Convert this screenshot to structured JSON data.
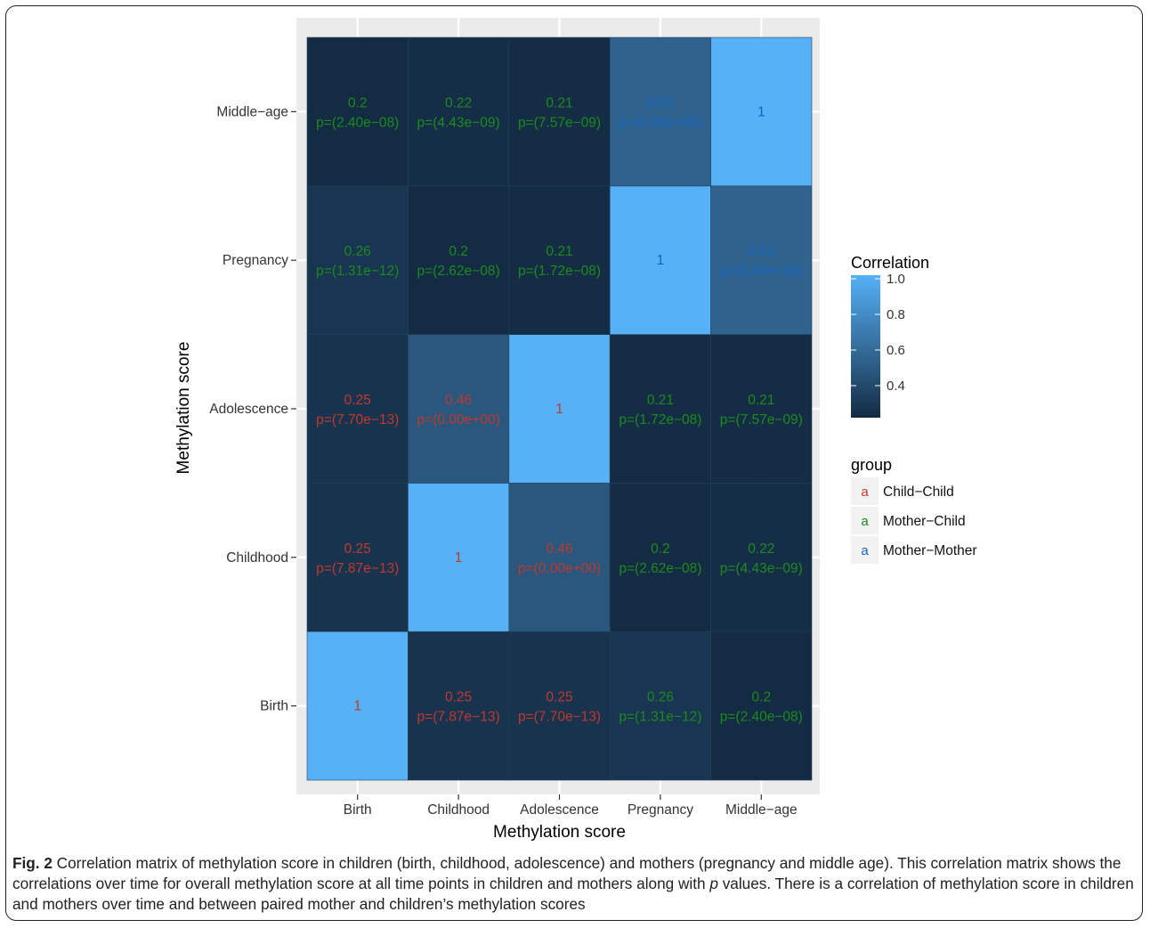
{
  "chart_data": {
    "type": "heatmap",
    "x_categories": [
      "Birth",
      "Childhood",
      "Adolescence",
      "Pregnancy",
      "Middle−age"
    ],
    "y_categories": [
      "Birth",
      "Childhood",
      "Adolescence",
      "Pregnancy",
      "Middle−age"
    ],
    "xlabel": "Methylation score",
    "ylabel": "Methylation score",
    "cells": [
      {
        "x": "Birth",
        "y": "Birth",
        "value": 1,
        "label": "1",
        "p": "",
        "group": "Child−Child"
      },
      {
        "x": "Birth",
        "y": "Childhood",
        "value": 0.25,
        "label": "0.25",
        "p": "p=(7.87e−13)",
        "group": "Child−Child"
      },
      {
        "x": "Birth",
        "y": "Adolescence",
        "value": 0.25,
        "label": "0.25",
        "p": "p=(7.70e−13)",
        "group": "Child−Child"
      },
      {
        "x": "Birth",
        "y": "Pregnancy",
        "value": 0.26,
        "label": "0.26",
        "p": "p=(1.31e−12)",
        "group": "Mother−Child"
      },
      {
        "x": "Birth",
        "y": "Middle−age",
        "value": 0.2,
        "label": "0.2",
        "p": "p=(2.40e−08)",
        "group": "Mother−Child"
      },
      {
        "x": "Childhood",
        "y": "Birth",
        "value": 0.25,
        "label": "0.25",
        "p": "p=(7.87e−13)",
        "group": "Child−Child"
      },
      {
        "x": "Childhood",
        "y": "Childhood",
        "value": 1,
        "label": "1",
        "p": "",
        "group": "Child−Child"
      },
      {
        "x": "Childhood",
        "y": "Adolescence",
        "value": 0.46,
        "label": "0.46",
        "p": "p=(0.00e+00)",
        "group": "Child−Child"
      },
      {
        "x": "Childhood",
        "y": "Pregnancy",
        "value": 0.2,
        "label": "0.2",
        "p": "p=(2.62e−08)",
        "group": "Mother−Child"
      },
      {
        "x": "Childhood",
        "y": "Middle−age",
        "value": 0.22,
        "label": "0.22",
        "p": "p=(4.43e−09)",
        "group": "Mother−Child"
      },
      {
        "x": "Adolescence",
        "y": "Birth",
        "value": 0.25,
        "label": "0.25",
        "p": "p=(7.70e−13)",
        "group": "Child−Child"
      },
      {
        "x": "Adolescence",
        "y": "Childhood",
        "value": 0.46,
        "label": "0.46",
        "p": "p=(0.00e+00)",
        "group": "Child−Child"
      },
      {
        "x": "Adolescence",
        "y": "Adolescence",
        "value": 1,
        "label": "1",
        "p": "",
        "group": "Child−Child"
      },
      {
        "x": "Adolescence",
        "y": "Pregnancy",
        "value": 0.21,
        "label": "0.21",
        "p": "p=(1.72e−08)",
        "group": "Mother−Child"
      },
      {
        "x": "Adolescence",
        "y": "Middle−age",
        "value": 0.21,
        "label": "0.21",
        "p": "p=(7.57e−09)",
        "group": "Mother−Child"
      },
      {
        "x": "Pregnancy",
        "y": "Birth",
        "value": 0.26,
        "label": "0.26",
        "p": "p=(1.31e−12)",
        "group": "Mother−Child"
      },
      {
        "x": "Pregnancy",
        "y": "Childhood",
        "value": 0.2,
        "label": "0.2",
        "p": "p=(2.62e−08)",
        "group": "Mother−Child"
      },
      {
        "x": "Pregnancy",
        "y": "Adolescence",
        "value": 0.21,
        "label": "0.21",
        "p": "p=(1.72e−08)",
        "group": "Mother−Child"
      },
      {
        "x": "Pregnancy",
        "y": "Pregnancy",
        "value": 1,
        "label": "1",
        "p": "",
        "group": "Mother−Mother"
      },
      {
        "x": "Pregnancy",
        "y": "Middle−age",
        "value": 0.53,
        "label": "0.53",
        "p": "p=(0.00e+00)",
        "group": "Mother−Mother"
      },
      {
        "x": "Middle−age",
        "y": "Birth",
        "value": 0.2,
        "label": "0.2",
        "p": "p=(2.40e−08)",
        "group": "Mother−Child"
      },
      {
        "x": "Middle−age",
        "y": "Childhood",
        "value": 0.22,
        "label": "0.22",
        "p": "p=(4.43e−09)",
        "group": "Mother−Child"
      },
      {
        "x": "Middle−age",
        "y": "Adolescence",
        "value": 0.21,
        "label": "0.21",
        "p": "p=(7.57e−09)",
        "group": "Mother−Child"
      },
      {
        "x": "Middle−age",
        "y": "Pregnancy",
        "value": 0.53,
        "label": "0.53",
        "p": "p=(0.00e+00)",
        "group": "Mother−Mother"
      },
      {
        "x": "Middle−age",
        "y": "Middle−age",
        "value": 1,
        "label": "1",
        "p": "",
        "group": "Mother−Mother"
      }
    ],
    "colorbar": {
      "title": "Correlation",
      "ticks": [
        1.0,
        0.8,
        0.6,
        0.4
      ],
      "tick_labels": [
        "1.0",
        "0.8",
        "0.6",
        "0.4"
      ],
      "range": [
        0.2,
        1.0
      ],
      "low_color": "#132b43",
      "high_color": "#56b1f7"
    },
    "group_legend": {
      "title": "group",
      "key_glyph": "a",
      "entries": [
        {
          "name": "Child−Child",
          "color": "#c0392b"
        },
        {
          "name": "Mother−Child",
          "color": "#1e8a1e"
        },
        {
          "name": "Mother−Mother",
          "color": "#1565c0"
        }
      ]
    },
    "panel_background": "#ebebeb",
    "grid": true
  },
  "caption": {
    "label": "Fig. 2",
    "text_before_p": " Correlation matrix of methylation score in children (birth, childhood, adolescence) and mothers (pregnancy and middle age). This correlation matrix shows the correlations over time for overall methylation score at all time points in children and mothers along with ",
    "p_symbol": "p",
    "text_after_p": " values. There is a correlation of methylation score in children and mothers over time and between paired mother and children’s methylation scores"
  }
}
